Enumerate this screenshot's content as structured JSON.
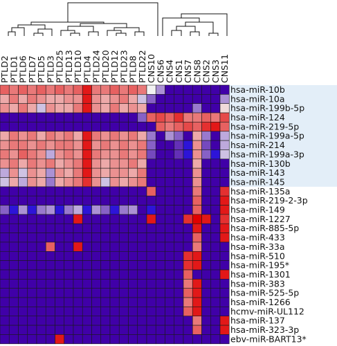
{
  "chart_data": {
    "type": "heatmap",
    "title": "",
    "xlabel": "",
    "ylabel": "",
    "columns": [
      "PTLD2",
      "PTLD1",
      "PTLD6",
      "PTLD7",
      "PTLD5",
      "PTLD3",
      "PTLD25",
      "PTLD13",
      "PTLD10",
      "PTLD4",
      "PTLD24",
      "PTLD20",
      "PTLD12",
      "PTLD23",
      "PTLD8",
      "PTLD22",
      "CNS10",
      "CNS6",
      "CNS4",
      "CNS1",
      "CNS7",
      "CNS8",
      "CNS2",
      "CNS3",
      "CNS11"
    ],
    "rows": [
      "hsa-miR-10b",
      "hsa-miR-10a",
      "hsa-miR-199b-5p",
      "hsa-miR-124",
      "hsa-miR-219-5p",
      "hsa-miR-199a-5p",
      "hsa-miR-214",
      "hsa-miR-199a-3p",
      "hsa-miR-130b",
      "hsa-miR-143",
      "hsa-miR-145",
      "hsa-miR-135a",
      "hsa-miR-219-2-3p",
      "hsa-miR-149",
      "hsa-miR-1227",
      "hsa-miR-885-5p",
      "hsa-miR-433",
      "hsa-miR-33a",
      "hsa-miR-510",
      "hsa-miR-195*",
      "hsa-miR-1301",
      "hsa-miR-383",
      "hsa-miR-525-5p",
      "hsa-miR-1266",
      "hcmv-miR-UL112",
      "hsa-miR-137",
      "hsa-miR-323-3p",
      "ebv-miR-BART13*"
    ],
    "color_scale": {
      "low": "#4000a8",
      "mid": "#f2f2f2",
      "high": "#e00000",
      "range": [
        -1,
        1
      ]
    },
    "highlight_rows": [
      0,
      10
    ],
    "highlight_color": "#e3eef8",
    "values": [
      [
        0.6,
        0.5,
        0.6,
        0.5,
        0.6,
        0.5,
        0.6,
        0.5,
        0.6,
        0.9,
        0.5,
        0.5,
        0.6,
        0.5,
        0.6,
        0.5,
        0.0,
        -0.4,
        -1,
        -1,
        -1,
        -1,
        -1,
        -1,
        -1
      ],
      [
        0.3,
        0.5,
        0.3,
        0.5,
        0.4,
        0.3,
        0.3,
        0.4,
        0.4,
        0.9,
        0.4,
        0.3,
        0.4,
        0.5,
        0.3,
        -0.2,
        -0.6,
        -1,
        -1,
        -1,
        -1,
        -1,
        -1,
        -1,
        -0.4
      ],
      [
        0.4,
        0.3,
        0.5,
        0.3,
        -0.2,
        0.4,
        0.3,
        0.3,
        0.5,
        0.9,
        0.4,
        0.3,
        0.5,
        0.3,
        0.4,
        0.3,
        -1,
        -1,
        -1,
        -1,
        -1,
        -0.5,
        -1,
        -1,
        0.1
      ],
      [
        -1,
        -1,
        -1,
        -1,
        -1,
        -1,
        -1,
        -1,
        -1,
        -1,
        -1,
        -1,
        -1,
        -1,
        -1,
        -0.6,
        0.6,
        0.7,
        0.6,
        0.8,
        0.5,
        0.5,
        0.6,
        0.5,
        0.7
      ],
      [
        -1,
        -1,
        -1,
        -1,
        -1,
        -1,
        -1,
        -1,
        -1,
        -1,
        -1,
        -1,
        -1,
        -1,
        -1,
        -1,
        -1,
        0.6,
        0.5,
        0.6,
        0.7,
        0.6,
        0.8,
        0.9,
        0.6
      ],
      [
        0.3,
        0.5,
        0.4,
        0.5,
        0.3,
        0.5,
        0.4,
        0.5,
        0.3,
        0.9,
        0.5,
        0.4,
        0.5,
        0.4,
        0.5,
        0.3,
        -0.5,
        -1,
        -0.4,
        -0.6,
        -1,
        0.3,
        -0.5,
        -1,
        -0.3
      ],
      [
        0.4,
        0.5,
        0.5,
        0.4,
        0.5,
        0.4,
        0.5,
        0.5,
        0.4,
        0.9,
        0.4,
        0.5,
        0.4,
        0.5,
        0.4,
        0.5,
        -0.6,
        -1,
        -1,
        -0.8,
        -1.2,
        0.4,
        -0.7,
        -1,
        -0.3
      ],
      [
        0.5,
        0.4,
        0.6,
        0.5,
        0.4,
        -0.3,
        0.4,
        0.5,
        0.4,
        0.9,
        0.5,
        0.4,
        0.4,
        0.5,
        0.4,
        0.5,
        -0.7,
        -1,
        -1,
        -0.8,
        -1.2,
        0.4,
        -0.6,
        -1.2,
        -0.2
      ],
      [
        0.4,
        0.5,
        0.3,
        0.5,
        0.4,
        0.5,
        0.3,
        0.4,
        0.5,
        0.9,
        0.4,
        0.3,
        0.4,
        0.4,
        0.5,
        0.3,
        -1,
        -1,
        -1,
        -1,
        -1,
        0.3,
        -1,
        -1,
        -1
      ],
      [
        -0.3,
        0.4,
        -0.2,
        0.4,
        0.3,
        -0.4,
        0.4,
        0.3,
        0.5,
        0.9,
        0.4,
        0.3,
        0.4,
        0.4,
        0.3,
        0.5,
        -1,
        -1,
        -1,
        -1,
        -1,
        0.4,
        -1,
        -1,
        -1
      ],
      [
        -0.2,
        0.3,
        -0.3,
        0.4,
        0.3,
        -0.5,
        0.3,
        0.4,
        0.5,
        0.8,
        0.4,
        -0.2,
        0.4,
        0.3,
        0.4,
        0.5,
        -1,
        -1,
        -1,
        -1,
        -1,
        0.4,
        -1,
        -1,
        -1
      ],
      [
        -1,
        -1,
        -1,
        -1,
        -1,
        -1,
        -1,
        -1,
        -1,
        -1,
        -1,
        -1,
        -1,
        -1,
        -1,
        -1,
        0.6,
        -1,
        -1,
        -1,
        -1,
        0.5,
        -1,
        -1,
        0.8
      ],
      [
        -1,
        -1,
        -1,
        -1,
        -1,
        -1,
        -1,
        -1,
        -1,
        -1,
        -1,
        -1,
        -1,
        -1,
        -1,
        -1,
        -1,
        -1,
        -1,
        -1,
        -1,
        0.6,
        -1,
        -1,
        0.9
      ],
      [
        -0.6,
        -1.2,
        -0.4,
        -1.2,
        -0.5,
        -0.4,
        -1.2,
        -0.5,
        -0.3,
        -1.2,
        -0.4,
        -0.6,
        -1.2,
        -0.5,
        -0.4,
        -1,
        -1.2,
        -1,
        -1,
        -1,
        -1,
        0.6,
        -1,
        -1,
        0.9
      ],
      [
        -1,
        -1,
        -1,
        -1,
        -1,
        -1,
        -1,
        -1,
        0.9,
        -1,
        -1,
        -1,
        -1,
        -1,
        -1,
        -1,
        0.9,
        -1,
        -1,
        -1,
        0.8,
        1,
        0.9,
        -1,
        0.8
      ],
      [
        -1,
        -1,
        -1,
        -1,
        -1,
        -1,
        -1,
        -1,
        -1,
        -1,
        -1,
        -1,
        -1,
        -1,
        -1,
        -1,
        -1,
        -1,
        -1,
        -1,
        -1,
        0.9,
        -1,
        -1,
        0.9
      ],
      [
        -1,
        -1,
        -1,
        -1,
        -1,
        -1,
        -1,
        -1,
        -1,
        -1,
        -1,
        -1,
        -1,
        -1,
        -1,
        -1,
        -1,
        -1,
        -1,
        -1,
        -1,
        0.6,
        -1,
        -1,
        0.9
      ],
      [
        -1,
        -1,
        -1,
        -1,
        -1,
        0.6,
        -1,
        -1,
        0.9,
        -1,
        -1,
        -1,
        -1,
        -1,
        -1,
        -1,
        -1,
        -1,
        -1,
        -1,
        -1,
        0.5,
        -1,
        -1,
        -1
      ],
      [
        -1,
        -1,
        -1,
        -1,
        -1,
        -1,
        -1,
        -1,
        -1,
        -1,
        -1,
        -1,
        -1,
        -1,
        -1,
        -1,
        -1,
        -1,
        -1,
        -1,
        0.8,
        0.9,
        -1,
        -1,
        -1
      ],
      [
        -1,
        -1,
        -1,
        -1,
        -1,
        -1,
        -1,
        -1,
        -1,
        -1,
        -1,
        -1,
        -1,
        -1,
        -1,
        -1,
        -1,
        -1,
        -1,
        -1,
        0.8,
        0.9,
        -1,
        -1,
        -1
      ],
      [
        -1,
        -1,
        -1,
        -1,
        -1,
        -1,
        -1,
        -1,
        -1,
        -1,
        -1,
        -1,
        -1,
        -1,
        -1,
        -1,
        -1,
        -1,
        -1,
        -1,
        0.6,
        -1,
        -1,
        -1,
        0.9
      ],
      [
        -1,
        -1,
        -1,
        -1,
        -1,
        -1,
        -1,
        -1,
        -1,
        -1,
        -1,
        -1,
        -1,
        -1,
        -1,
        -1,
        -1,
        -1,
        -1,
        -1,
        0.5,
        0.9,
        -1,
        -1,
        -1
      ],
      [
        -1,
        -1,
        -1,
        -1,
        -1,
        -1,
        -1,
        -1,
        -1,
        -1,
        -1,
        -1,
        -1,
        -1,
        -1,
        -1,
        -1,
        -1,
        -1,
        -1,
        0.6,
        0.9,
        -1,
        -1,
        -1
      ],
      [
        -1,
        -1,
        -1,
        -1,
        -1,
        -1,
        -1,
        -1,
        -1,
        -1,
        -1,
        -1,
        -1,
        -1,
        -1,
        -1,
        -1,
        -1,
        -1,
        -1,
        0.5,
        0.9,
        -1,
        -1,
        -1
      ],
      [
        -1,
        -1,
        -1,
        -1,
        -1,
        -1,
        -1,
        -1,
        -1,
        -1,
        -1,
        -1,
        -1,
        -1,
        -1,
        -1,
        -1,
        -1,
        -1,
        -1,
        0.6,
        0.9,
        -1,
        -1,
        -1
      ],
      [
        -1,
        -1,
        -1,
        -1,
        -1,
        -1,
        -1,
        -1,
        -1,
        -1,
        -1,
        -1,
        -1,
        -1,
        -1,
        -1,
        -1,
        -1,
        -1,
        -1,
        -1,
        0.5,
        -1,
        -1,
        0.9
      ],
      [
        -1,
        -1,
        -1,
        -1,
        -1,
        -1,
        -1,
        -1,
        -1,
        -1,
        -1,
        -1,
        -1,
        -1,
        -1,
        -1,
        -1,
        -1,
        -1,
        -1,
        -1,
        0.6,
        -1,
        -1,
        0.9
      ],
      [
        -1,
        -1,
        -1,
        -1,
        -1,
        -1,
        0.9,
        -1,
        -1,
        -1,
        -1,
        -1,
        -1,
        -1,
        -1,
        -1,
        -1,
        -1,
        -1,
        -1,
        -1,
        -1,
        -1,
        -1,
        -1
      ]
    ]
  }
}
